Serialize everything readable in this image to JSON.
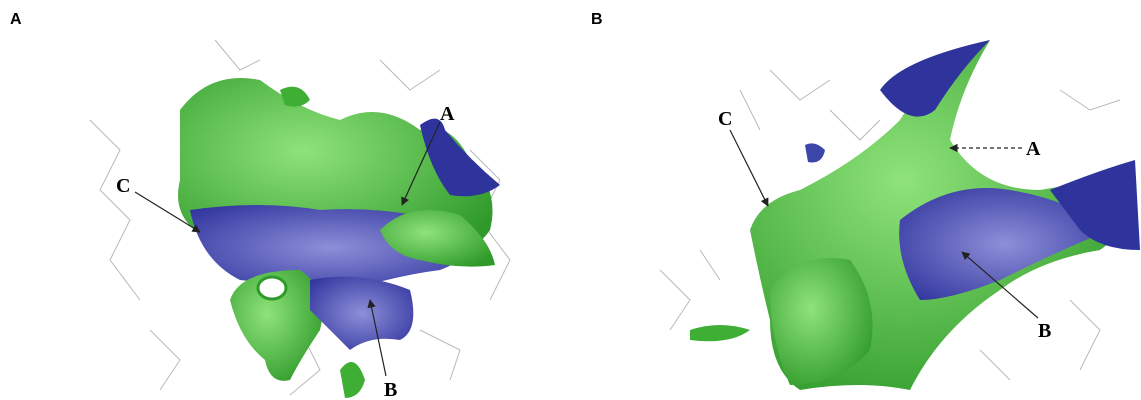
{
  "panels": [
    {
      "label": "A",
      "annotations": [
        "A",
        "C",
        "B"
      ]
    },
    {
      "label": "B",
      "annotations": [
        "C",
        "A",
        "B"
      ]
    }
  ]
}
